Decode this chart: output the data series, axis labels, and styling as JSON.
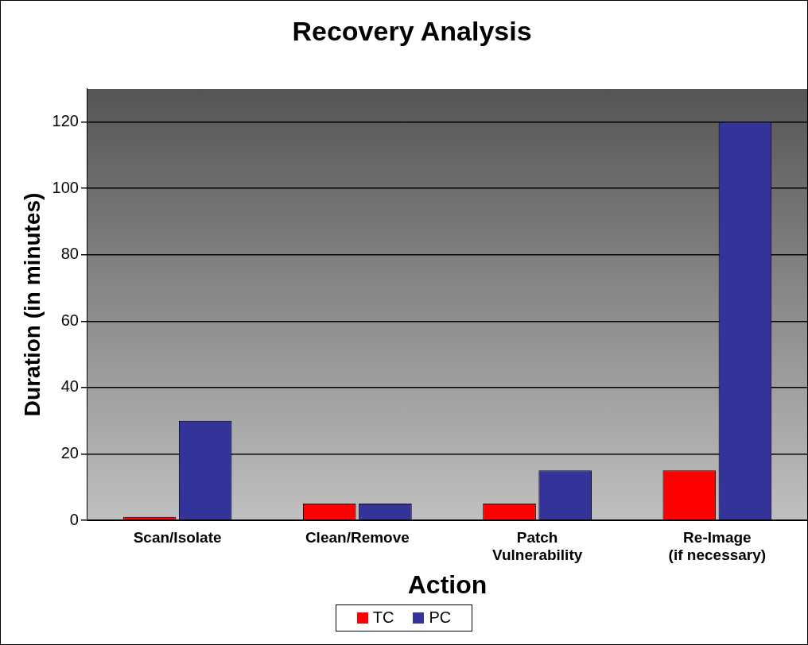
{
  "chart_data": {
    "type": "bar",
    "title": "Recovery Analysis",
    "xlabel": "Action",
    "ylabel": "Duration (in minutes)",
    "categories": [
      "Scan/Isolate",
      "Clean/Remove",
      "Patch Vulnerability",
      "Re-Image (if necessary)"
    ],
    "series": [
      {
        "name": "TC",
        "color": "#ff0000",
        "values": [
          1,
          5,
          5,
          15
        ]
      },
      {
        "name": "PC",
        "color": "#333399",
        "values": [
          30,
          5,
          15,
          120
        ]
      }
    ],
    "ylim": [
      0,
      130
    ],
    "yticks": [
      0,
      20,
      40,
      60,
      80,
      100,
      120
    ],
    "grid": "y",
    "legend": "bottom"
  }
}
